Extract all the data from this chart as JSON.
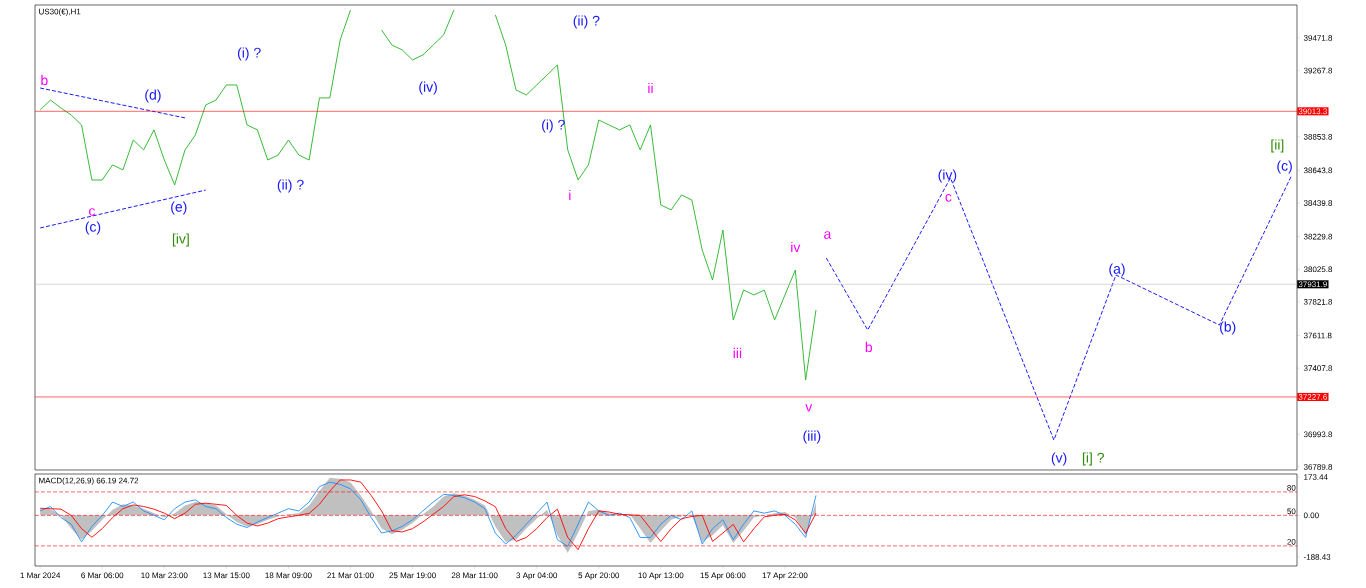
{
  "chart_data": [
    {
      "type": "line",
      "title": "US30(€),H1",
      "tick_labels": "y",
      "marker": "none",
      "categories": [
        null,
        null,
        null,
        null,
        null,
        null,
        null,
        null,
        null,
        null,
        null,
        null,
        null,
        null,
        null,
        null,
        null,
        null,
        null,
        null,
        null,
        null,
        null,
        null,
        null,
        null,
        null,
        null,
        null,
        null,
        null,
        null,
        null,
        null,
        null,
        null,
        null,
        null,
        null,
        null,
        null,
        null,
        null,
        null,
        null,
        null,
        null,
        null,
        null,
        null,
        null,
        null,
        null,
        null,
        null,
        null,
        null,
        null,
        null,
        null,
        null,
        null,
        null,
        null,
        null,
        null,
        null,
        null,
        null,
        null,
        null,
        null,
        null,
        null,
        null,
        null,
        null,
        null,
        null,
        null,
        null,
        null,
        null,
        null,
        null,
        null,
        null,
        null,
        null,
        null,
        null,
        null,
        null,
        null,
        null,
        null,
        null,
        null,
        null,
        null,
        null,
        null,
        null,
        null,
        null,
        null,
        null,
        null,
        null,
        null,
        null,
        null,
        null,
        null,
        null,
        null,
        null,
        null,
        null,
        null,
        null,
        null
      ],
      "ylim": [
        36771,
        39678
      ],
      "yticks": [
        39471.8,
        39267.8,
        38853.8,
        38643.8,
        38439.8,
        38229.8,
        38025.8,
        37821.8,
        37611.8,
        37407.8,
        36993.8,
        36789.8
      ],
      "series": [
        {
          "color": "#22b422",
          "line_style": "solid",
          "values": [
            39022,
            39084,
            39034,
            38990,
            38928,
            38584,
            38584,
            38678,
            38647,
            38834,
            38772,
            38897,
            38709,
            38553,
            38772,
            38865,
            39053,
            39084,
            39178,
            39178,
            38928,
            38897,
            38709,
            38740,
            38834,
            38740,
            38709,
            39097,
            39097,
            39459,
            39647,
            null,
            null,
            39522,
            39428,
            39397,
            39334,
            39366,
            39428,
            39491,
            39647,
            null,
            null,
            null,
            39616,
            39428,
            39147,
            39115,
            39178,
            39240,
            39303,
            38772,
            38584,
            38678,
            38959,
            38928,
            38897,
            38928,
            38772,
            38928,
            38428,
            38397,
            38490,
            38459,
            38146,
            37959,
            38271,
            37709,
            37896,
            37865,
            37896,
            37709,
            37865,
            38021,
            37334,
            37771,
            null,
            null,
            null,
            null,
            null,
            null,
            null,
            null,
            null,
            null,
            null,
            null,
            null,
            null,
            null,
            null,
            null,
            null,
            null,
            null,
            null,
            null,
            null,
            null,
            null,
            null,
            null,
            null,
            null,
            null,
            null,
            null,
            null,
            null,
            null,
            null,
            null,
            null,
            null,
            null,
            null,
            null,
            null,
            null,
            null,
            null
          ]
        },
        {
          "color": "#0000ff",
          "line_style": "dashed",
          "values": [
            null,
            null,
            null,
            null,
            null,
            null,
            null,
            null,
            null,
            null,
            null,
            null,
            null,
            null,
            null,
            null,
            null,
            null,
            null,
            null,
            null,
            null,
            null,
            null,
            null,
            null,
            null,
            null,
            null,
            null,
            null,
            null,
            null,
            null,
            null,
            null,
            null,
            null,
            null,
            null,
            null,
            null,
            null,
            null,
            null,
            null,
            null,
            null,
            null,
            null,
            null,
            null,
            null,
            null,
            null,
            null,
            null,
            null,
            null,
            null,
            null,
            null,
            null,
            null,
            null,
            null,
            null,
            null,
            null,
            null,
            null,
            null,
            null,
            null,
            null,
            null,
            38096,
            null,
            null,
            null,
            37646,
            null,
            null,
            null,
            null,
            null,
            null,
            null,
            38597,
            null,
            null,
            null,
            null,
            null,
            null,
            null,
            null,
            null,
            36958,
            null,
            null,
            null,
            null,
            null,
            37990,
            null,
            null,
            null,
            null,
            null,
            null,
            null,
            null,
            null,
            37677,
            null,
            null,
            null,
            null,
            null,
            null,
            38615
          ]
        },
        {
          "color": "#0000ff",
          "line_style": "dashed",
          "values": [
            39159,
            null,
            null,
            null,
            null,
            null,
            null,
            null,
            null,
            null,
            null,
            null,
            null,
            null,
            38972,
            null,
            null,
            null,
            null,
            null,
            null,
            null,
            null,
            null,
            null,
            null,
            null,
            null,
            null,
            null,
            null,
            null,
            null,
            null,
            null,
            null,
            null,
            null,
            null,
            null,
            null,
            null,
            null,
            null,
            null,
            null,
            null,
            null,
            null,
            null,
            null,
            null,
            null,
            null,
            null,
            null,
            null,
            null,
            null,
            null,
            null,
            null,
            null,
            null,
            null,
            null,
            null,
            null,
            null,
            null,
            null,
            null,
            null,
            null,
            null,
            null,
            null,
            null,
            null,
            null,
            null,
            null,
            null,
            null,
            null,
            null,
            null,
            null,
            null,
            null,
            null,
            null,
            null,
            null,
            null,
            null,
            null,
            null,
            null,
            null,
            null,
            null,
            null,
            null,
            null,
            null,
            null,
            null,
            null,
            null,
            null,
            null,
            null,
            null,
            null,
            null,
            null,
            null,
            null,
            null,
            null,
            null
          ]
        },
        {
          "color": "#0000ff",
          "line_style": "dashed",
          "values": [
            38284,
            null,
            null,
            null,
            null,
            null,
            null,
            null,
            null,
            null,
            null,
            null,
            null,
            null,
            null,
            null,
            38521,
            null,
            null,
            null,
            null,
            null,
            null,
            null,
            null,
            null,
            null,
            null,
            null,
            null,
            null,
            null,
            null,
            null,
            null,
            null,
            null,
            null,
            null,
            null,
            null,
            null,
            null,
            null,
            null,
            null,
            null,
            null,
            null,
            null,
            null,
            null,
            null,
            null,
            null,
            null,
            null,
            null,
            null,
            null,
            null,
            null,
            null,
            null,
            null,
            null,
            null,
            null,
            null,
            null,
            null,
            null,
            null,
            null,
            null,
            null,
            null,
            null,
            null,
            null,
            null,
            null,
            null,
            null,
            null,
            null,
            null,
            null,
            null,
            null,
            null,
            null,
            null,
            null,
            null,
            null,
            null,
            null,
            null,
            null,
            null,
            null,
            null,
            null,
            null,
            null,
            null,
            null,
            null,
            null,
            null,
            null,
            null,
            null,
            null,
            null,
            null,
            null,
            null,
            null,
            null,
            null
          ]
        }
      ],
      "ref_lines": [
        {
          "axis": "y",
          "value": 39013.3,
          "label": "39013.3",
          "color": "#ff0000"
        },
        {
          "axis": "y",
          "value": 37931.9,
          "label": "37931.9",
          "color": "#c0c0c0"
        },
        {
          "axis": "y",
          "value": 37227.6,
          "label": "37227.6",
          "color": "#ff0000"
        }
      ],
      "annotations": [
        "b",
        "(d)",
        "c",
        "(c)",
        "(e)",
        "[iv]",
        "(i) ?",
        "(ii) ?",
        "(iv)",
        "(ii) ?",
        "(i) ?",
        "ii",
        "i",
        "iii",
        "iv",
        "a",
        "v",
        "(iii)",
        "b",
        "(iv)",
        "c",
        "(a)",
        "(b)",
        "(v)",
        "[i] ?",
        "[ii]",
        "(c)"
      ]
    },
    {
      "type": "line",
      "title": "MACD(12,26,9) 66.19 24.72",
      "marker": "none",
      "categories": [
        "1 Mar 2024",
        null,
        null,
        null,
        null,
        null,
        "6 Mar 06:00",
        null,
        null,
        null,
        null,
        null,
        "10 Mar 23:00",
        null,
        null,
        null,
        null,
        null,
        "13 Mar 15:00",
        null,
        null,
        null,
        null,
        null,
        "18 Mar 09:00",
        null,
        null,
        null,
        null,
        null,
        "21 Mar 01:00",
        null,
        null,
        null,
        null,
        null,
        "25 Mar 19:00",
        null,
        null,
        null,
        null,
        null,
        "28 Mar 11:00",
        null,
        null,
        null,
        null,
        null,
        "3 Apr 04:00",
        null,
        null,
        null,
        null,
        null,
        "5 Apr 20:00",
        null,
        null,
        null,
        null,
        null,
        "10 Apr 13:00",
        null,
        null,
        null,
        null,
        null,
        "15 Apr 06:00",
        null,
        null,
        null,
        null,
        null,
        "17 Apr 22:00",
        null,
        null,
        null,
        null,
        null,
        null,
        null,
        null,
        null,
        null,
        null,
        null,
        null,
        null,
        null,
        null,
        null,
        null,
        null,
        null,
        null,
        null,
        null,
        null,
        null,
        null,
        null,
        null,
        null,
        null,
        null,
        null,
        null,
        null,
        null,
        null,
        null,
        null,
        null,
        null,
        null,
        null,
        null,
        null,
        null,
        null,
        null,
        null,
        null
      ],
      "ylim": [
        -229,
        187
      ],
      "yticks": [
        173.44,
        {
          "value": 0,
          "label": "0.00"
        },
        -188.43
      ],
      "series": [
        {
          "type": "area",
          "color": "#c0c0c0",
          "values": [
            30,
            28,
            0,
            -60,
            -110,
            -70,
            -20,
            25,
            50,
            45,
            30,
            10,
            -10,
            10,
            45,
            60,
            55,
            45,
            5,
            -30,
            -50,
            -40,
            -20,
            -5,
            5,
            10,
            45,
            110,
            170,
            165,
            150,
            90,
            20,
            -60,
            -85,
            -65,
            -35,
            5,
            40,
            85,
            100,
            90,
            70,
            45,
            -50,
            -120,
            -110,
            -60,
            -15,
            25,
            -90,
            -170,
            -80,
            20,
            25,
            10,
            5,
            5,
            -60,
            -125,
            -70,
            -20,
            -5,
            0,
            -120,
            -90,
            -45,
            -125,
            -70,
            -10,
            0,
            10,
            15,
            -10,
            -90,
            60,
            null,
            null,
            null,
            null,
            null,
            null,
            null,
            null,
            null,
            null,
            null,
            null,
            null,
            null,
            null,
            null,
            null,
            null,
            null,
            null,
            null,
            null,
            null,
            null,
            null,
            null,
            null,
            null,
            null,
            null,
            null,
            null,
            null,
            null,
            null,
            null,
            null,
            null,
            null,
            null,
            null,
            null,
            null,
            null,
            null,
            null
          ]
        },
        {
          "color": "#1e90ff",
          "line_style": "solid",
          "values": [
            20,
            40,
            -10,
            -40,
            -120,
            -50,
            0,
            60,
            40,
            60,
            20,
            0,
            -20,
            30,
            60,
            70,
            40,
            30,
            -10,
            -40,
            -55,
            -30,
            -10,
            10,
            30,
            20,
            60,
            130,
            150,
            140,
            120,
            70,
            -10,
            -80,
            -70,
            -50,
            -20,
            20,
            60,
            95,
            90,
            80,
            60,
            30,
            -80,
            -130,
            -90,
            -40,
            10,
            60,
            -110,
            -140,
            -40,
            60,
            20,
            0,
            10,
            -10,
            -100,
            -100,
            -40,
            0,
            -20,
            20,
            -130,
            -60,
            -20,
            -110,
            -40,
            20,
            10,
            20,
            0,
            -40,
            -100,
            90,
            null,
            null,
            null,
            null,
            null,
            null,
            null,
            null,
            null,
            null,
            null,
            null,
            null,
            null,
            null,
            null,
            null,
            null,
            null,
            null,
            null,
            null,
            null,
            null,
            null,
            null,
            null,
            null,
            null,
            null,
            null,
            null,
            null,
            null,
            null,
            null,
            null,
            null,
            null,
            null,
            null,
            null,
            null,
            null,
            null,
            null
          ]
        },
        {
          "color": "#ff0000",
          "line_style": "solid",
          "values": [
            32,
            30,
            28,
            0,
            -60,
            -99,
            -60,
            -10,
            30,
            47,
            40,
            28,
            10,
            -15,
            10,
            50,
            55,
            50,
            45,
            0,
            -35,
            -48,
            -35,
            -15,
            -7,
            0,
            9,
            50,
            110,
            160,
            160,
            150,
            90,
            20,
            -70,
            -75,
            -60,
            -30,
            5,
            40,
            85,
            93,
            85,
            65,
            39,
            -60,
            -118,
            -100,
            -60,
            -10,
            28,
            -100,
            -155,
            -60,
            20,
            15,
            5,
            2,
            0,
            -60,
            -118,
            -60,
            -15,
            -5,
            0,
            -118,
            -80,
            -41,
            -120,
            -60,
            -7,
            0,
            5,
            -20,
            -81,
            10,
            null,
            null,
            null,
            null,
            null,
            null,
            null,
            null,
            null,
            null,
            null,
            null,
            null,
            null,
            null,
            null,
            null,
            null,
            null,
            null,
            null,
            null,
            null,
            null,
            null,
            null,
            null,
            null,
            null,
            null,
            null,
            null,
            null,
            null,
            null,
            null,
            null,
            null,
            null,
            null,
            null,
            null,
            null,
            null,
            null,
            null
          ]
        }
      ],
      "ref_lines": [
        {
          "axis": "y",
          "value": 106,
          "color": "#ff0000",
          "line_style": "dashed"
        },
        {
          "axis": "y",
          "value": 0,
          "color": "#ff0000",
          "line_style": "dashed"
        },
        {
          "axis": "y",
          "value": -138,
          "color": "#ff0000",
          "line_style": "dashed"
        }
      ],
      "annotations": [
        "80",
        "50",
        "20"
      ]
    }
  ]
}
